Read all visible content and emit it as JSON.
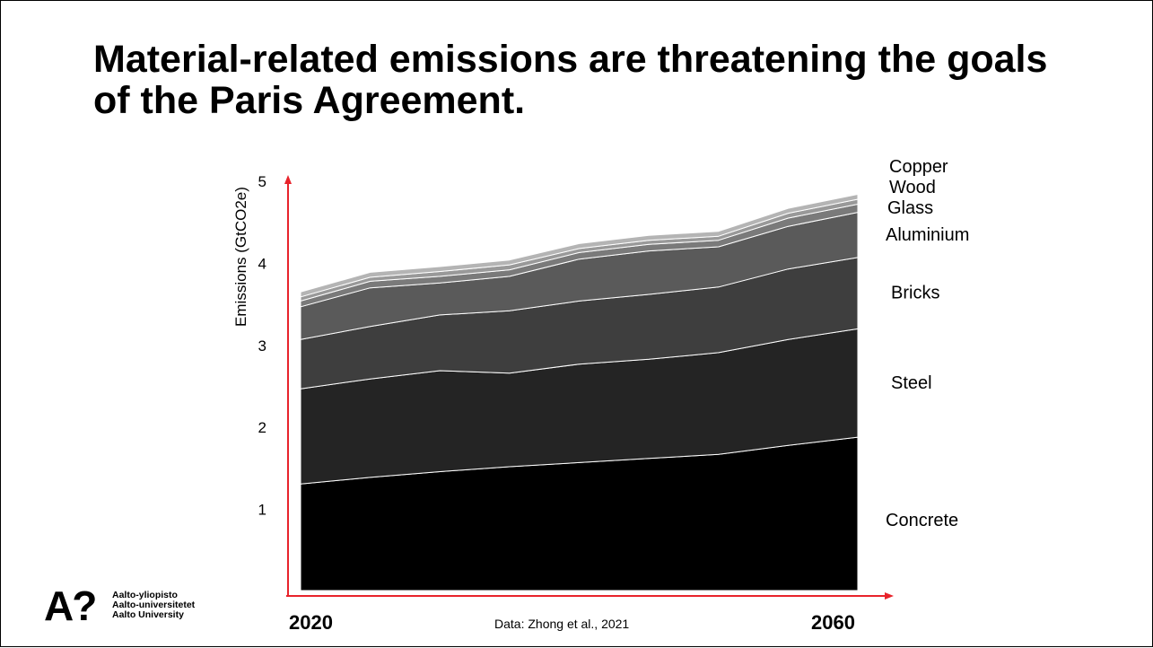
{
  "slide": {
    "title_line1": "Material-related emissions are threatening the goals",
    "title_line2": "of the Paris Agreement."
  },
  "logo": {
    "mark": "A?",
    "line1": "Aalto-yliopisto",
    "line2": "Aalto-universitetet",
    "line3": "Aalto University"
  },
  "colors": {
    "axis": "#e8232b",
    "series": [
      "#000000",
      "#242424",
      "#3e3e3e",
      "#5a5a5a",
      "#7a7a7a",
      "#999999",
      "#b4b4b4"
    ]
  },
  "chart_data": {
    "type": "area",
    "stacked": true,
    "x": [
      2020,
      2025,
      2030,
      2035,
      2040,
      2045,
      2050,
      2055,
      2060
    ],
    "x_tick_labels": [
      "2020",
      "2060"
    ],
    "ylabel": "Emissions (GtCO2e)",
    "y_ticks": [
      1,
      2,
      3,
      4,
      5
    ],
    "ylim": [
      0,
      5
    ],
    "source_note": "Data: Zhong et al., 2021",
    "legend": "inline-right",
    "series": [
      {
        "name": "Concrete",
        "values": [
          1.3,
          1.38,
          1.45,
          1.51,
          1.56,
          1.61,
          1.66,
          1.77,
          1.87
        ]
      },
      {
        "name": "Steel",
        "values": [
          1.16,
          1.2,
          1.23,
          1.14,
          1.2,
          1.21,
          1.24,
          1.29,
          1.32
        ]
      },
      {
        "name": "Bricks",
        "values": [
          0.6,
          0.64,
          0.68,
          0.76,
          0.77,
          0.79,
          0.8,
          0.86,
          0.87
        ]
      },
      {
        "name": "Aluminium",
        "values": [
          0.4,
          0.47,
          0.39,
          0.42,
          0.51,
          0.53,
          0.49,
          0.52,
          0.55
        ]
      },
      {
        "name": "Glass",
        "values": [
          0.07,
          0.08,
          0.08,
          0.08,
          0.08,
          0.08,
          0.08,
          0.1,
          0.1
        ]
      },
      {
        "name": "Wood",
        "values": [
          0.05,
          0.05,
          0.06,
          0.06,
          0.05,
          0.05,
          0.05,
          0.06,
          0.06
        ]
      },
      {
        "name": "Copper",
        "values": [
          0.06,
          0.06,
          0.06,
          0.06,
          0.06,
          0.06,
          0.06,
          0.06,
          0.06
        ]
      }
    ]
  }
}
